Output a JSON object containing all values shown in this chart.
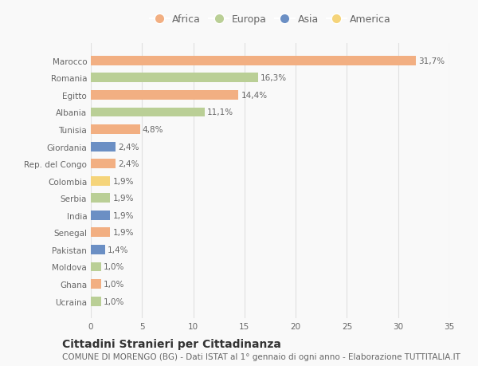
{
  "countries": [
    "Marocco",
    "Romania",
    "Egitto",
    "Albania",
    "Tunisia",
    "Giordania",
    "Rep. del Congo",
    "Colombia",
    "Serbia",
    "India",
    "Senegal",
    "Pakistan",
    "Moldova",
    "Ghana",
    "Ucraina"
  ],
  "values": [
    31.7,
    16.3,
    14.4,
    11.1,
    4.8,
    2.4,
    2.4,
    1.9,
    1.9,
    1.9,
    1.9,
    1.4,
    1.0,
    1.0,
    1.0
  ],
  "labels": [
    "31,7%",
    "16,3%",
    "14,4%",
    "11,1%",
    "4,8%",
    "2,4%",
    "2,4%",
    "1,9%",
    "1,9%",
    "1,9%",
    "1,9%",
    "1,4%",
    "1,0%",
    "1,0%",
    "1,0%"
  ],
  "continents": [
    "Africa",
    "Europa",
    "Africa",
    "Europa",
    "Africa",
    "Asia",
    "Africa",
    "America",
    "Europa",
    "Asia",
    "Africa",
    "Asia",
    "Europa",
    "Africa",
    "Europa"
  ],
  "continent_colors": {
    "Africa": "#F2AF82",
    "Europa": "#BACF96",
    "Asia": "#6B8FC4",
    "America": "#F5D47A"
  },
  "legend_order": [
    "Africa",
    "Europa",
    "Asia",
    "America"
  ],
  "title": "Cittadini Stranieri per Cittadinanza",
  "subtitle": "COMUNE DI MORENGO (BG) - Dati ISTAT al 1° gennaio di ogni anno - Elaborazione TUTTITALIA.IT",
  "xlim": [
    0,
    35
  ],
  "xticks": [
    0,
    5,
    10,
    15,
    20,
    25,
    30,
    35
  ],
  "background_color": "#f9f9f9",
  "grid_color": "#e0e0e0",
  "bar_height": 0.55,
  "title_fontsize": 10,
  "subtitle_fontsize": 7.5,
  "label_fontsize": 7.5,
  "tick_fontsize": 7.5,
  "legend_fontsize": 9
}
